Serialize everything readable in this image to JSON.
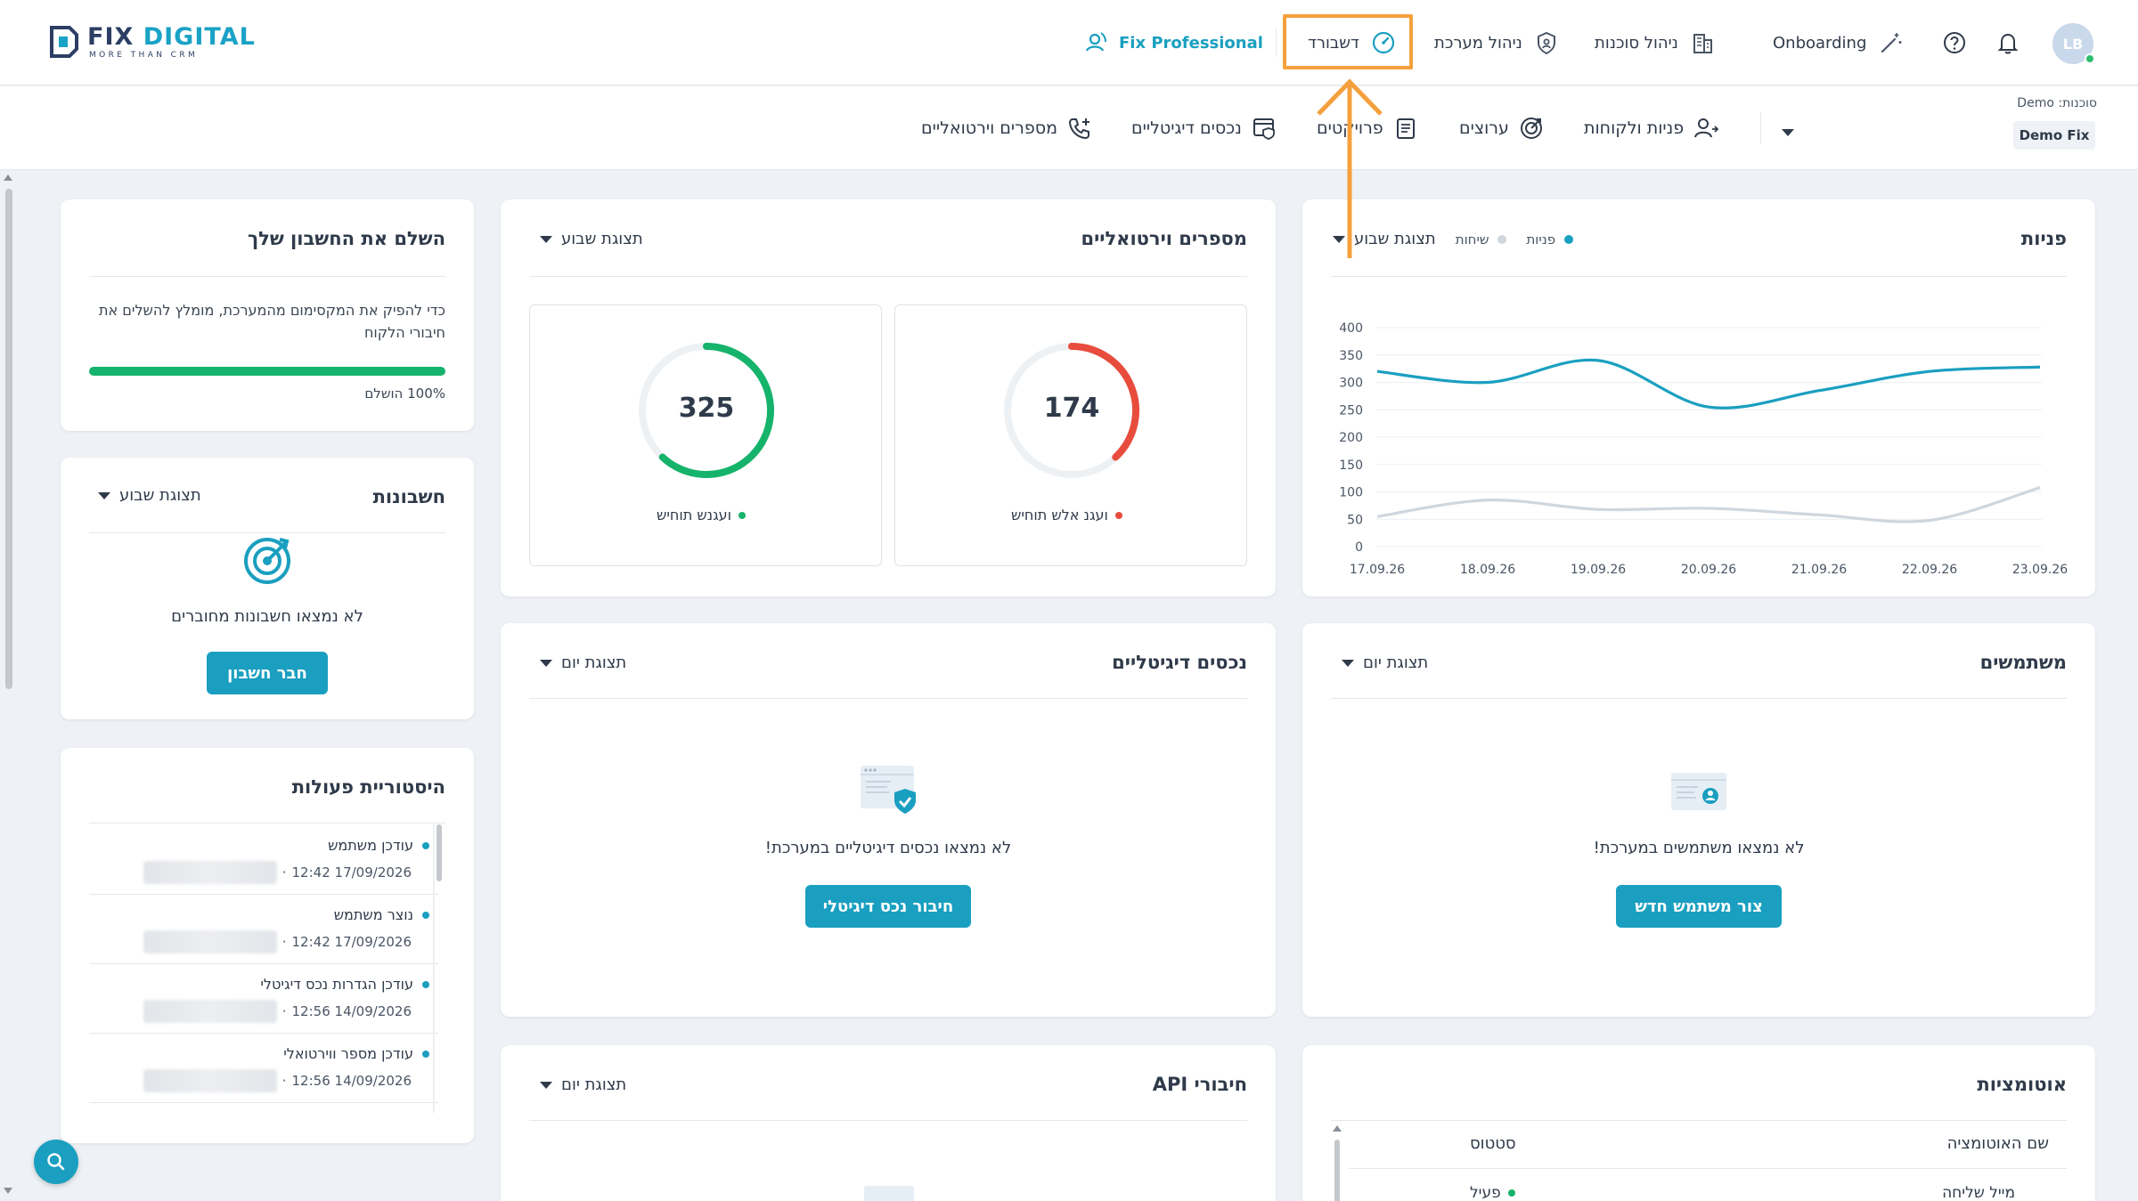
{
  "brand": {
    "name_part1": "FIX",
    "name_part2": "DIGITAL",
    "tagline": "MORE THAN CRM"
  },
  "header": {
    "fix_professional": "Fix Professional",
    "dashboard": "דשבורד",
    "system_management": "ניהול מערכת",
    "agency_management": "ניהול סוכנות",
    "onboarding": "Onboarding",
    "avatar_initials": "LB"
  },
  "subnav": {
    "agency_label": "סוכנות: Demo",
    "agency_value": "Demo Fix",
    "items": [
      "פניות ולקוחות",
      "ערוצים",
      "פרויקטים",
      "נכסים דיגיטליים",
      "מספרים וירטואליים"
    ]
  },
  "inquiries": {
    "title": "פניות",
    "legend_inquiries": "פניות",
    "legend_calls": "שיחות",
    "view": "תצוגת שבוע"
  },
  "chart_data": {
    "type": "line",
    "x": [
      "17.09.26",
      "18.09.26",
      "19.09.26",
      "20.09.26",
      "21.09.26",
      "22.09.26",
      "23.09.26"
    ],
    "yticks": [
      0,
      50,
      100,
      150,
      200,
      250,
      300,
      350,
      400
    ],
    "ylim": [
      0,
      400
    ],
    "series": [
      {
        "name": "פניות",
        "color": "#1a9fc0",
        "values": [
          320,
          300,
          340,
          255,
          285,
          320,
          328
        ]
      },
      {
        "name": "שיחות",
        "color": "#cfd6de",
        "values": [
          55,
          85,
          68,
          70,
          58,
          48,
          108
        ]
      }
    ]
  },
  "virtual_numbers": {
    "title": "מספרים וירטואליים",
    "view": "תצוגת שבוע",
    "unanswered_value": "174",
    "unanswered_label": "ועגנ אלש תוחיש",
    "unanswered_fraction": 0.38,
    "answered_value": "325",
    "answered_label": "ועגנש תוחיש",
    "answered_fraction": 0.62
  },
  "complete_account": {
    "title": "השלם את החשבון שלך",
    "text": "כדי להפיק את המקסימום מהמערכת, מומלץ להשלים את חיבורי הלקוח",
    "progress_label": "100% הושלם",
    "progress": 1.0
  },
  "accounts": {
    "title": "חשבונות",
    "view": "תצוגת שבוע",
    "empty": "לא נמצאו חשבונות מחוברים",
    "button": "חבר חשבון"
  },
  "users": {
    "title": "משתמשים",
    "view": "תצוגת יום",
    "empty": "לא נמצאו משתמשים במערכת!",
    "button": "צור משתמש חדש"
  },
  "digital_assets": {
    "title": "נכסים דיגיטליים",
    "view": "תצוגת יום",
    "empty": "לא נמצאו נכסים דיגיטליים במערכת!",
    "button": "חיבור נכס דיגיטלי"
  },
  "history": {
    "title": "היסטוריית פעולות",
    "items": [
      {
        "title": "עודכן משתמש",
        "date": "17/09/2026 12:42"
      },
      {
        "title": "נוצר משתמש",
        "date": "17/09/2026 12:42"
      },
      {
        "title": "עודכן הגדרות נכס דיגיטלי",
        "date": "14/09/2026 12:56"
      },
      {
        "title": "עודכן מספר ווירטואלי",
        "date": "14/09/2026 12:56"
      }
    ]
  },
  "automations": {
    "title": "אוטומציות",
    "col_name": "שם האוטומציה",
    "col_status": "סטטוס",
    "row_name": "מייל שליחה",
    "row_status": "פעיל"
  },
  "api": {
    "title": "חיבורי API",
    "view": "תצוגת יום"
  },
  "colors": {
    "accent": "#1a9fc0",
    "success": "#15b36b",
    "danger": "#e84c3d",
    "highlight": "#f5a03c"
  }
}
